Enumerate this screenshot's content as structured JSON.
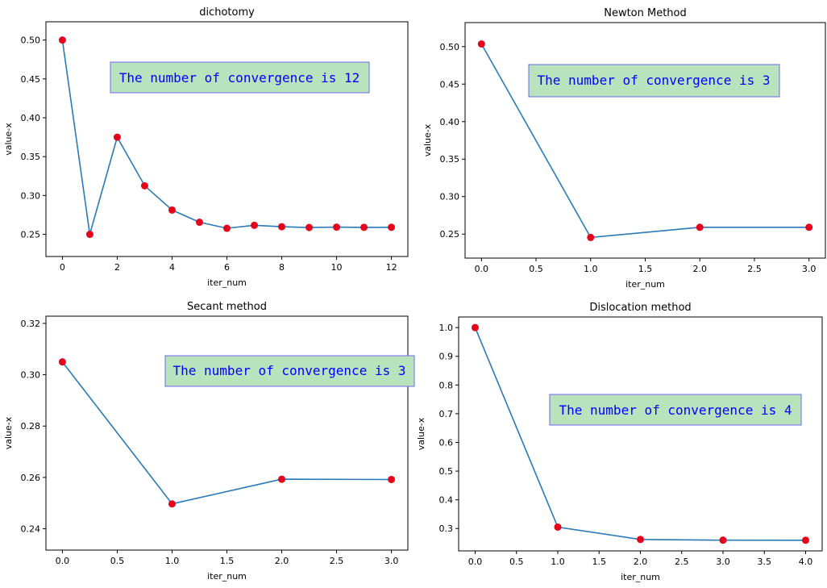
{
  "colors": {
    "line": "#2a7ab8",
    "points": "#e8001a",
    "annotation_fill": "#b9e3bc",
    "annotation_text": "#0000ff",
    "annotation_border": "#6a6af0"
  },
  "chart_data": [
    {
      "type": "line",
      "title": "dichotomy",
      "xlabel": "iter_num",
      "ylabel": "value-x",
      "xlim": [
        -0.6,
        12.6
      ],
      "ylim": [
        0.2215,
        0.5235
      ],
      "xticks": [
        0,
        2,
        4,
        6,
        8,
        10,
        12
      ],
      "yticks": [
        0.25,
        0.3,
        0.35,
        0.4,
        0.45,
        0.5
      ],
      "xtick_labels": [
        "0",
        "2",
        "4",
        "6",
        "8",
        "10",
        "12"
      ],
      "ytick_labels": [
        "0.25",
        "0.30",
        "0.35",
        "0.40",
        "0.45",
        "0.50"
      ],
      "x": [
        0,
        1,
        2,
        3,
        4,
        5,
        6,
        7,
        8,
        9,
        10,
        11,
        12
      ],
      "y": [
        0.5,
        0.25,
        0.375,
        0.3125,
        0.28125,
        0.2656,
        0.2578,
        0.2617,
        0.2598,
        0.2588,
        0.2593,
        0.259,
        0.2591
      ],
      "annotation": "The number of convergence is 12",
      "grid": false
    },
    {
      "type": "line",
      "title": "Newton Method",
      "xlabel": "iter_num",
      "ylabel": "value-x",
      "xlim": [
        -0.15,
        3.15
      ],
      "ylim": [
        0.218,
        0.532
      ],
      "xticks": [
        0,
        0.5,
        1,
        1.5,
        2,
        2.5,
        3
      ],
      "yticks": [
        0.25,
        0.3,
        0.35,
        0.4,
        0.45,
        0.5
      ],
      "xtick_labels": [
        "0.0",
        "0.5",
        "1.0",
        "1.5",
        "2.0",
        "2.5",
        "3.0"
      ],
      "ytick_labels": [
        "0.25",
        "0.30",
        "0.35",
        "0.40",
        "0.45",
        "0.50"
      ],
      "x": [
        0,
        1,
        2,
        3
      ],
      "y": [
        0.5035,
        0.2455,
        0.2591,
        0.2591
      ],
      "annotation": "The number of convergence is 3",
      "grid": false
    },
    {
      "type": "line",
      "title": "Secant method",
      "xlabel": "iter_num",
      "ylabel": "value-x",
      "xlim": [
        -0.15,
        3.15
      ],
      "ylim": [
        0.2317,
        0.3228
      ],
      "xticks": [
        0,
        0.5,
        1,
        1.5,
        2,
        2.5,
        3
      ],
      "yticks": [
        0.24,
        0.26,
        0.28,
        0.3,
        0.32
      ],
      "xtick_labels": [
        "0.0",
        "0.5",
        "1.0",
        "1.5",
        "2.0",
        "2.5",
        "3.0"
      ],
      "ytick_labels": [
        "0.24",
        "0.26",
        "0.28",
        "0.30",
        "0.32"
      ],
      "x": [
        0,
        1,
        2,
        3
      ],
      "y": [
        0.305,
        0.2497,
        0.2593,
        0.2592
      ],
      "annotation": "The number of convergence is 3",
      "grid": false
    },
    {
      "type": "line",
      "title": "Dislocation method",
      "xlabel": "iter_num",
      "ylabel": "value-x",
      "xlim": [
        -0.2,
        4.2
      ],
      "ylim": [
        0.222,
        1.037
      ],
      "xticks": [
        0,
        0.5,
        1,
        1.5,
        2,
        2.5,
        3,
        3.5,
        4
      ],
      "yticks": [
        0.3,
        0.4,
        0.5,
        0.6,
        0.7,
        0.8,
        0.9,
        1.0
      ],
      "xtick_labels": [
        "0.0",
        "0.5",
        "1.0",
        "1.5",
        "2.0",
        "2.5",
        "3.0",
        "3.5",
        "4.0"
      ],
      "ytick_labels": [
        "0.3",
        "0.4",
        "0.5",
        "0.6",
        "0.7",
        "0.8",
        "0.9",
        "1.0"
      ],
      "x": [
        0,
        1,
        2,
        3,
        4
      ],
      "y": [
        1.0,
        0.305,
        0.262,
        0.2595,
        0.2591
      ],
      "annotation": "The number of convergence is 4",
      "grid": false
    }
  ]
}
